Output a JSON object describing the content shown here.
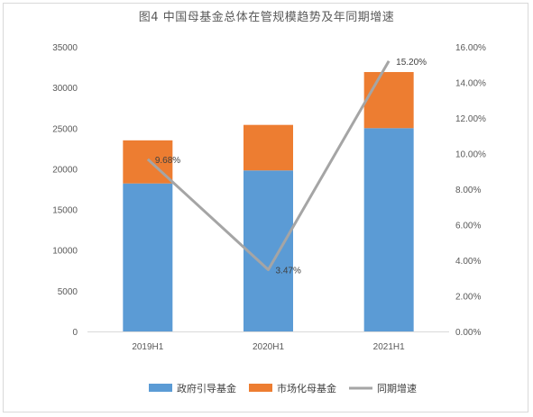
{
  "chart_data": {
    "type": "bar",
    "title": "图4  中国母基金总体在管规模趋势及年同期增速",
    "categories": [
      "2019H1",
      "2020H1",
      "2021H1"
    ],
    "series": [
      {
        "name": "政府引导基金",
        "kind": "stacked-bar",
        "axis": "left",
        "color": "#5B9BD5",
        "values": [
          18200,
          19800,
          25000
        ]
      },
      {
        "name": "市场化母基金",
        "kind": "stacked-bar",
        "axis": "left",
        "color": "#ED7D31",
        "values": [
          5300,
          5600,
          6900
        ]
      },
      {
        "name": "同期增速",
        "kind": "line",
        "axis": "right",
        "color": "#A5A5A5",
        "values": [
          9.68,
          3.47,
          15.2
        ],
        "labels": [
          "9.68%",
          "3.47%",
          "15.20%"
        ]
      }
    ],
    "y_left": {
      "min": 0,
      "max": 35000,
      "step": 5000,
      "ticks": [
        "0",
        "5000",
        "10000",
        "15000",
        "20000",
        "25000",
        "30000",
        "35000"
      ]
    },
    "y_right": {
      "min": 0,
      "max": 16,
      "step": 2,
      "ticks": [
        "0.00%",
        "2.00%",
        "4.00%",
        "6.00%",
        "8.00%",
        "10.00%",
        "12.00%",
        "14.00%",
        "16.00%"
      ]
    },
    "grid": false,
    "legend_position": "bottom"
  }
}
